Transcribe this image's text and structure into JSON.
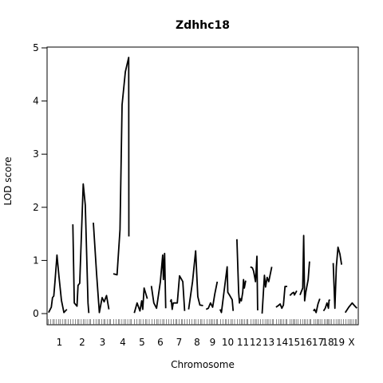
{
  "chart_data": {
    "type": "line",
    "title": "Zdhhc18",
    "xlabel": "Chromosome",
    "ylabel": "LOD score",
    "ylim": [
      0,
      5
    ],
    "yticks": [
      0,
      1,
      2,
      3,
      4,
      5
    ],
    "grid": false,
    "legend": "none",
    "line_color": "#000000",
    "chromosomes": [
      {
        "label": "1",
        "points": [
          [
            0.06,
            0.02
          ],
          [
            0.17,
            0.12
          ],
          [
            0.22,
            0.3
          ],
          [
            0.27,
            0.33
          ],
          [
            0.32,
            0.6
          ],
          [
            0.4,
            1.1
          ],
          [
            0.48,
            0.7
          ],
          [
            0.58,
            0.25
          ],
          [
            0.68,
            0.02
          ],
          [
            0.8,
            0.08
          ]
        ]
      },
      {
        "label": "2",
        "points": [
          [
            0.05,
            1.68
          ],
          [
            0.12,
            0.2
          ],
          [
            0.25,
            0.14
          ],
          [
            0.3,
            0.53
          ],
          [
            0.38,
            0.57
          ],
          [
            0.55,
            2.44
          ],
          [
            0.65,
            2.04
          ],
          [
            0.78,
            0.2
          ],
          [
            0.82,
            0.01
          ]
        ]
      },
      {
        "label": "3",
        "points": [
          [
            0.04,
            1.71
          ],
          [
            0.2,
            0.76
          ],
          [
            0.34,
            0.02
          ],
          [
            0.48,
            0.3
          ],
          [
            0.58,
            0.22
          ],
          [
            0.7,
            0.34
          ],
          [
            0.82,
            0.08
          ]
        ]
      },
      {
        "label": "4",
        "points": [
          [
            0.04,
            0.75
          ],
          [
            0.22,
            0.73
          ],
          [
            0.36,
            1.58
          ],
          [
            0.46,
            3.93
          ],
          [
            0.62,
            4.55
          ],
          [
            0.78,
            4.82
          ],
          [
            0.79,
            1.45
          ]
        ]
      },
      {
        "label": "5",
        "points": [
          [
            0.06,
            0.01
          ],
          [
            0.22,
            0.2
          ],
          [
            0.38,
            0.05
          ],
          [
            0.48,
            0.24
          ],
          [
            0.54,
            0.08
          ],
          [
            0.62,
            0.48
          ],
          [
            0.8,
            0.28
          ]
        ]
      },
      {
        "label": "6",
        "points": [
          [
            0.03,
            0.52
          ],
          [
            0.16,
            0.2
          ],
          [
            0.3,
            0.1
          ],
          [
            0.5,
            0.6
          ],
          [
            0.62,
            1.1
          ],
          [
            0.66,
            0.64
          ],
          [
            0.72,
            1.13
          ],
          [
            0.78,
            0.1
          ]
        ]
      },
      {
        "label": "7",
        "points": [
          [
            0.02,
            0.22
          ],
          [
            0.07,
            0.26
          ],
          [
            0.12,
            0.08
          ],
          [
            0.18,
            0.2
          ],
          [
            0.28,
            0.2
          ],
          [
            0.4,
            0.2
          ],
          [
            0.52,
            0.71
          ],
          [
            0.62,
            0.65
          ],
          [
            0.7,
            0.6
          ],
          [
            0.8,
            0.05
          ]
        ]
      },
      {
        "label": "8",
        "points": [
          [
            0.02,
            0.08
          ],
          [
            0.24,
            0.6
          ],
          [
            0.42,
            1.18
          ],
          [
            0.54,
            0.32
          ],
          [
            0.66,
            0.16
          ],
          [
            0.84,
            0.15
          ]
        ]
      },
      {
        "label": "9",
        "points": [
          [
            0.02,
            0.08
          ],
          [
            0.18,
            0.1
          ],
          [
            0.34,
            0.2
          ],
          [
            0.5,
            0.12
          ],
          [
            0.66,
            0.37
          ],
          [
            0.84,
            0.6
          ]
        ]
      },
      {
        "label": "10",
        "points": [
          [
            0.04,
            0.08
          ],
          [
            0.12,
            0.02
          ],
          [
            0.26,
            0.38
          ],
          [
            0.46,
            0.88
          ],
          [
            0.5,
            0.4
          ],
          [
            0.62,
            0.34
          ],
          [
            0.76,
            0.26
          ],
          [
            0.82,
            0.05
          ]
        ]
      },
      {
        "label": "11",
        "points": [
          [
            0.05,
            1.4
          ],
          [
            0.18,
            0.4
          ],
          [
            0.24,
            0.2
          ],
          [
            0.3,
            0.28
          ],
          [
            0.38,
            0.24
          ],
          [
            0.48,
            0.4
          ],
          [
            0.54,
            0.64
          ],
          [
            0.6,
            0.48
          ],
          [
            0.7,
            0.62
          ]
        ]
      },
      {
        "label": "12",
        "points": [
          [
            0.05,
            0.88
          ],
          [
            0.22,
            0.86
          ],
          [
            0.32,
            0.8
          ],
          [
            0.48,
            0.6
          ],
          [
            0.6,
            1.08
          ],
          [
            0.66,
            0.06
          ]
        ]
      },
      {
        "label": "13",
        "points": [
          [
            0.03,
            0.0
          ],
          [
            0.2,
            0.72
          ],
          [
            0.28,
            0.5
          ],
          [
            0.4,
            0.68
          ],
          [
            0.52,
            0.6
          ],
          [
            0.74,
            0.88
          ]
        ]
      },
      {
        "label": "14",
        "points": [
          [
            0.05,
            0.12
          ],
          [
            0.22,
            0.15
          ],
          [
            0.36,
            0.18
          ],
          [
            0.48,
            0.1
          ],
          [
            0.6,
            0.16
          ],
          [
            0.72,
            0.51
          ],
          [
            0.88,
            0.51
          ]
        ]
      },
      {
        "label": "15",
        "points": [
          [
            0.1,
            0.34
          ],
          [
            0.3,
            0.38
          ],
          [
            0.46,
            0.4
          ],
          [
            0.54,
            0.35
          ],
          [
            0.76,
            0.43
          ]
        ]
      },
      {
        "label": "16",
        "points": [
          [
            0.06,
            0.35
          ],
          [
            0.26,
            0.48
          ],
          [
            0.33,
            1.47
          ],
          [
            0.4,
            0.24
          ],
          [
            0.48,
            0.4
          ],
          [
            0.66,
            0.64
          ],
          [
            0.76,
            0.98
          ]
        ]
      },
      {
        "label": "17",
        "points": [
          [
            0.06,
            0.05
          ],
          [
            0.18,
            0.08
          ],
          [
            0.32,
            0.02
          ],
          [
            0.5,
            0.18
          ],
          [
            0.68,
            0.28
          ]
        ]
      },
      {
        "label": "18",
        "points": [
          [
            0.04,
            0.05
          ],
          [
            0.22,
            0.1
          ],
          [
            0.4,
            0.2
          ],
          [
            0.55,
            0.1
          ],
          [
            0.62,
            0.25
          ],
          [
            0.72,
            0.26
          ]
        ]
      },
      {
        "label": "19",
        "points": [
          [
            0.04,
            0.95
          ],
          [
            0.18,
            0.1
          ],
          [
            0.3,
            0.88
          ],
          [
            0.44,
            1.25
          ],
          [
            0.6,
            1.12
          ],
          [
            0.74,
            0.92
          ]
        ]
      },
      {
        "label": "X",
        "points": [
          [
            0.04,
            0.02
          ],
          [
            0.3,
            0.12
          ],
          [
            0.55,
            0.2
          ],
          [
            0.72,
            0.15
          ],
          [
            0.9,
            0.1
          ]
        ]
      }
    ]
  }
}
